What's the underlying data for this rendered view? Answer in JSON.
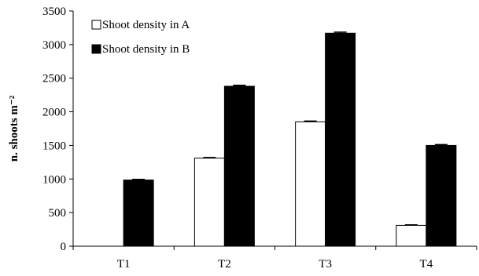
{
  "chart_data": {
    "type": "bar",
    "title": "",
    "xlabel": "",
    "ylabel": "n. shoots m⁻²",
    "ylim": [
      0,
      3500
    ],
    "yticks": [
      0,
      500,
      1000,
      1500,
      2000,
      2500,
      3000,
      3500
    ],
    "categories": [
      "T1",
      "T2",
      "T3",
      "T4"
    ],
    "series": [
      {
        "name": "Shoot density in A",
        "color": "#ffffff",
        "values": [
          0,
          1310,
          1850,
          310
        ],
        "errors": [
          0,
          10,
          12,
          8
        ]
      },
      {
        "name": "Shoot density in B",
        "color": "#000000",
        "values": [
          985,
          2380,
          3170,
          1500
        ],
        "errors": [
          10,
          15,
          15,
          12
        ]
      }
    ],
    "legend": "top-left",
    "grid": false
  }
}
